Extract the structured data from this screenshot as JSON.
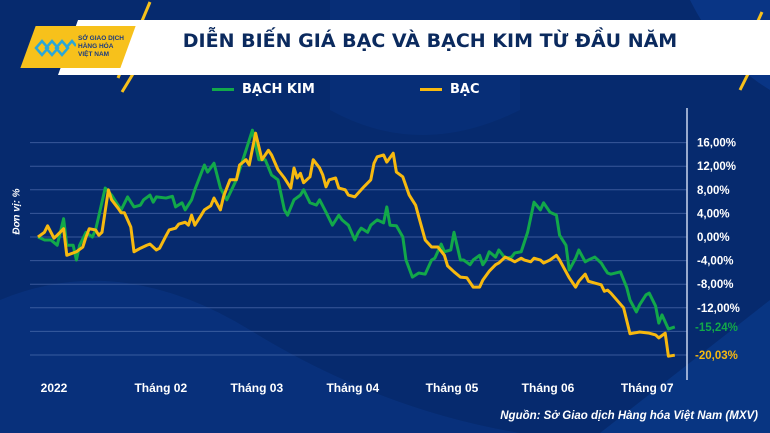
{
  "header": {
    "title": "DIỄN BIẾN GIÁ BẠC VÀ BẠCH KIM TỪ ĐẦU NĂM",
    "logo_text": [
      "SỞ GIAO DỊCH",
      "HÀNG HÓA",
      "VIỆT NAM"
    ]
  },
  "footer": {
    "source": "Nguồn: Sở Giao dịch Hàng hóa Việt Nam (MXV)"
  },
  "chart_data": {
    "type": "line",
    "title": "DIỄN BIẾN GIÁ BẠC VÀ BẠCH KIM TỪ ĐẦU NĂM",
    "ylabel": "Đơn vị: %",
    "xlabel": "",
    "x_unit": "days since start of 2022",
    "ylim": [
      -21,
      19
    ],
    "y_axis_position": "right",
    "grid": true,
    "legend_position": "top",
    "x_ticks": [
      {
        "label": "2022",
        "x": 0
      },
      {
        "label": "Tháng 02",
        "x": 34
      },
      {
        "label": "Tháng 03",
        "x": 64
      },
      {
        "label": "Tháng 04",
        "x": 94
      },
      {
        "label": "Tháng 05",
        "x": 125
      },
      {
        "label": "Tháng 06",
        "x": 155
      },
      {
        "label": "Tháng 07",
        "x": 186
      }
    ],
    "y_ticks": [
      {
        "label": "16,00%",
        "v": 16
      },
      {
        "label": "12,00%",
        "v": 12
      },
      {
        "label": "8,00%",
        "v": 8
      },
      {
        "label": "4,00%",
        "v": 4
      },
      {
        "label": "0,00%",
        "v": 0
      },
      {
        "label": "-4,00%",
        "v": -4
      },
      {
        "label": "-8,00%",
        "v": -8
      },
      {
        "label": "-12,00%",
        "v": -12
      }
    ],
    "series": [
      {
        "name": "BẠCH KIM",
        "color": "#12a84a",
        "end_label": "-15,24%",
        "end_value": -15.24,
        "points": [
          [
            0,
            0
          ],
          [
            2,
            -0.5
          ],
          [
            4,
            -0.5
          ],
          [
            6,
            -1.4
          ],
          [
            8,
            3.1
          ],
          [
            9,
            -1.4
          ],
          [
            11,
            -1.4
          ],
          [
            12,
            -3.9
          ],
          [
            13,
            -1.4
          ],
          [
            15,
            0.8
          ],
          [
            17,
            0
          ],
          [
            18,
            1.2
          ],
          [
            21,
            8.3
          ],
          [
            23,
            7.1
          ],
          [
            25,
            5.4
          ],
          [
            26,
            4.6
          ],
          [
            28,
            6.8
          ],
          [
            30,
            5.1
          ],
          [
            32,
            5.4
          ],
          [
            33,
            6.3
          ],
          [
            35,
            7.1
          ],
          [
            36,
            5.9
          ],
          [
            37,
            6.8
          ],
          [
            40,
            6.6
          ],
          [
            42,
            6.9
          ],
          [
            43,
            5.1
          ],
          [
            45,
            5.8
          ],
          [
            46,
            4.6
          ],
          [
            48,
            6.3
          ],
          [
            49,
            8.0
          ],
          [
            52,
            12.2
          ],
          [
            53,
            11.0
          ],
          [
            55,
            12.5
          ],
          [
            57,
            8.3
          ],
          [
            59,
            6.3
          ],
          [
            62,
            9.7
          ],
          [
            63,
            11.4
          ],
          [
            65,
            14.7
          ],
          [
            67,
            18.1
          ],
          [
            69,
            13.1
          ],
          [
            71,
            13.1
          ],
          [
            73,
            10.5
          ],
          [
            75,
            9.7
          ],
          [
            77,
            4.6
          ],
          [
            78,
            3.7
          ],
          [
            80,
            6.3
          ],
          [
            82,
            7.1
          ],
          [
            83,
            8.0
          ],
          [
            85,
            5.8
          ],
          [
            87,
            5.4
          ],
          [
            88,
            6.3
          ],
          [
            90,
            4.2
          ],
          [
            92,
            2.0
          ],
          [
            94,
            3.7
          ],
          [
            95,
            2.9
          ],
          [
            97,
            2.0
          ],
          [
            99,
            -0.5
          ],
          [
            100,
            0.7
          ],
          [
            101,
            1.5
          ],
          [
            103,
            0.8
          ],
          [
            104,
            2.0
          ],
          [
            106,
            2.9
          ],
          [
            108,
            2.4
          ],
          [
            109,
            5.1
          ],
          [
            110,
            2.0
          ],
          [
            112,
            1.9
          ],
          [
            114,
            0
          ],
          [
            115,
            -3.9
          ],
          [
            117,
            -6.8
          ],
          [
            119,
            -6.1
          ],
          [
            121,
            -6.3
          ],
          [
            123,
            -3.9
          ],
          [
            124,
            -3.6
          ],
          [
            126,
            -1.2
          ],
          [
            127,
            -2.5
          ],
          [
            129,
            -2.2
          ],
          [
            130,
            0.8
          ],
          [
            132,
            -3.9
          ],
          [
            133,
            -3.9
          ],
          [
            135,
            -4.7
          ],
          [
            136,
            -3.9
          ],
          [
            138,
            -3.1
          ],
          [
            139,
            -4.7
          ],
          [
            140,
            -3.9
          ],
          [
            141,
            -2.5
          ],
          [
            143,
            -3.4
          ],
          [
            144,
            -2.2
          ],
          [
            146,
            -3.6
          ],
          [
            148,
            -3.4
          ],
          [
            149,
            -2.7
          ],
          [
            151,
            -2.5
          ],
          [
            153,
            0.8
          ],
          [
            155,
            5.9
          ],
          [
            157,
            4.6
          ],
          [
            158,
            5.8
          ],
          [
            160,
            4.2
          ],
          [
            162,
            3.7
          ],
          [
            163,
            0.3
          ],
          [
            165,
            -1.4
          ],
          [
            166,
            -5.6
          ],
          [
            168,
            -3.6
          ],
          [
            169,
            -2.2
          ],
          [
            171,
            -4.2
          ],
          [
            172,
            -3.9
          ],
          [
            174,
            -3.4
          ],
          [
            176,
            -4.4
          ],
          [
            177,
            -5.3
          ],
          [
            178,
            -6.1
          ],
          [
            179,
            -6.3
          ],
          [
            182,
            -5.9
          ],
          [
            184,
            -8.6
          ],
          [
            185,
            -10.7
          ],
          [
            187,
            -12.7
          ],
          [
            188,
            -11.5
          ],
          [
            190,
            -9.8
          ],
          [
            191,
            -9.5
          ],
          [
            193,
            -11.7
          ],
          [
            194,
            -14.6
          ],
          [
            195,
            -13.2
          ],
          [
            197,
            -15.6
          ],
          [
            199,
            -15.24
          ]
        ]
      },
      {
        "name": "BẠC",
        "color": "#f7b90f",
        "end_label": "-20,03%",
        "end_value": -20.03,
        "points": [
          [
            0,
            0
          ],
          [
            2,
            0.8
          ],
          [
            3,
            1.9
          ],
          [
            5,
            -0.2
          ],
          [
            6,
            0.3
          ],
          [
            8,
            1.4
          ],
          [
            9,
            -3.1
          ],
          [
            12,
            -2.5
          ],
          [
            14,
            -1.7
          ],
          [
            15,
            0
          ],
          [
            16,
            1.4
          ],
          [
            18,
            1.2
          ],
          [
            19,
            0.3
          ],
          [
            20,
            0.8
          ],
          [
            22,
            8.0
          ],
          [
            23,
            6.3
          ],
          [
            25,
            4.9
          ],
          [
            26,
            4.1
          ],
          [
            27,
            4.1
          ],
          [
            29,
            1.7
          ],
          [
            30,
            -2.5
          ],
          [
            32,
            -1.9
          ],
          [
            34,
            -1.4
          ],
          [
            35,
            -1.2
          ],
          [
            37,
            -2.2
          ],
          [
            38,
            -1.9
          ],
          [
            40,
            0.2
          ],
          [
            41,
            1.2
          ],
          [
            43,
            1.5
          ],
          [
            44,
            2.2
          ],
          [
            46,
            2.5
          ],
          [
            47,
            2.0
          ],
          [
            48,
            3.7
          ],
          [
            49,
            2.0
          ],
          [
            51,
            3.7
          ],
          [
            52,
            4.6
          ],
          [
            54,
            5.3
          ],
          [
            55,
            6.6
          ],
          [
            57,
            4.6
          ],
          [
            58,
            6.9
          ],
          [
            60,
            9.7
          ],
          [
            62,
            9.7
          ],
          [
            63,
            12.2
          ],
          [
            65,
            13.1
          ],
          [
            66,
            12.2
          ],
          [
            68,
            17.6
          ],
          [
            70,
            13.1
          ],
          [
            72,
            14.7
          ],
          [
            73,
            13.9
          ],
          [
            75,
            11.4
          ],
          [
            77,
            10.0
          ],
          [
            79,
            8.3
          ],
          [
            80,
            11.7
          ],
          [
            81,
            10.0
          ],
          [
            82,
            10.8
          ],
          [
            83,
            9.2
          ],
          [
            85,
            10.2
          ],
          [
            86,
            13.1
          ],
          [
            88,
            11.7
          ],
          [
            89,
            10.5
          ],
          [
            90,
            8.5
          ],
          [
            91,
            9.7
          ],
          [
            93,
            10.0
          ],
          [
            94,
            8.3
          ],
          [
            96,
            8.0
          ],
          [
            97,
            7.1
          ],
          [
            99,
            6.8
          ],
          [
            101,
            8.0
          ],
          [
            102,
            8.6
          ],
          [
            104,
            9.7
          ],
          [
            105,
            12.5
          ],
          [
            106,
            13.6
          ],
          [
            108,
            13.9
          ],
          [
            109,
            12.7
          ],
          [
            111,
            14.2
          ],
          [
            112,
            11.0
          ],
          [
            114,
            10.2
          ],
          [
            116,
            7.1
          ],
          [
            118,
            5.4
          ],
          [
            119,
            3.4
          ],
          [
            121,
            -0.5
          ],
          [
            123,
            -1.7
          ],
          [
            125,
            -1.7
          ],
          [
            127,
            -3.1
          ],
          [
            128,
            -4.9
          ],
          [
            130,
            -5.9
          ],
          [
            132,
            -6.8
          ],
          [
            134,
            -6.9
          ],
          [
            136,
            -8.5
          ],
          [
            138,
            -8.5
          ],
          [
            139,
            -7.3
          ],
          [
            141,
            -5.8
          ],
          [
            143,
            -4.7
          ],
          [
            144,
            -4.4
          ],
          [
            146,
            -3.4
          ],
          [
            148,
            -3.9
          ],
          [
            149,
            -4.2
          ],
          [
            151,
            -3.6
          ],
          [
            152,
            -3.9
          ],
          [
            154,
            -4.2
          ],
          [
            155,
            -3.6
          ],
          [
            157,
            -3.9
          ],
          [
            158,
            -4.4
          ],
          [
            160,
            -3.9
          ],
          [
            162,
            -3.1
          ],
          [
            163,
            -3.9
          ],
          [
            165,
            -5.9
          ],
          [
            166,
            -6.9
          ],
          [
            168,
            -8.5
          ],
          [
            169,
            -7.5
          ],
          [
            171,
            -6.3
          ],
          [
            172,
            -7.5
          ],
          [
            174,
            -7.8
          ],
          [
            176,
            -8.1
          ],
          [
            177,
            -9.2
          ],
          [
            178,
            -9.0
          ],
          [
            179,
            -9.5
          ],
          [
            183,
            -12.0
          ],
          [
            185,
            -16.4
          ],
          [
            188,
            -16.1
          ],
          [
            191,
            -16.3
          ],
          [
            193,
            -16.6
          ],
          [
            194,
            -17.1
          ],
          [
            196,
            -16.3
          ],
          [
            197,
            -20.2
          ],
          [
            199,
            -20.03
          ]
        ]
      }
    ]
  }
}
